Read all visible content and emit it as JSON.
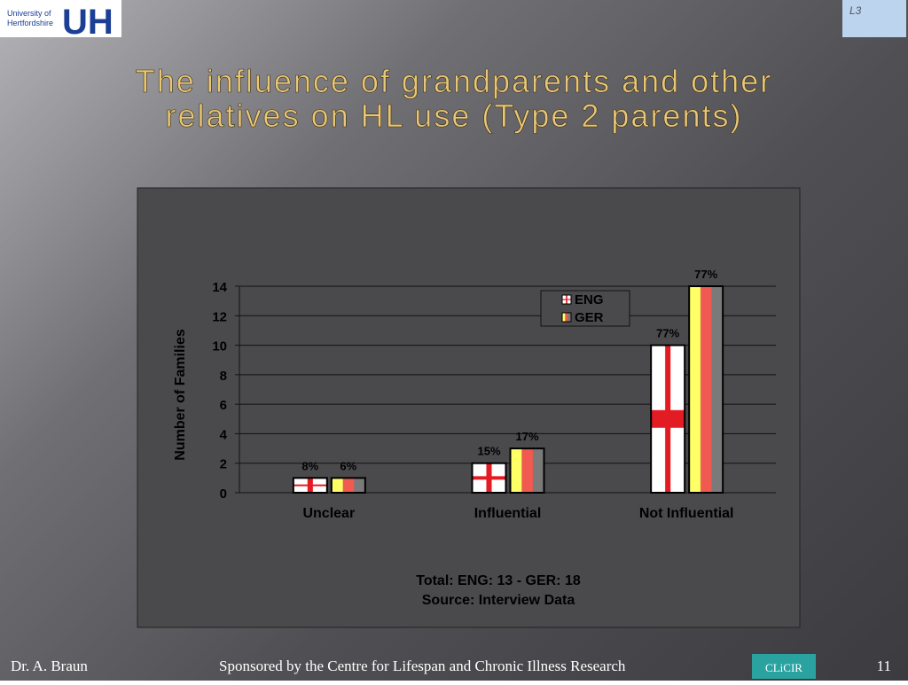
{
  "header": {
    "logo_line1": "University of",
    "logo_line2": "Hertfordshire",
    "logo_mark": "UH",
    "badge": "L3"
  },
  "title_line1": "The influence of grandparents and other",
  "title_line2": "relatives on HL use (Type 2 parents)",
  "chart_data": {
    "type": "bar",
    "categories": [
      "Unclear",
      "Influential",
      "Not Influential"
    ],
    "series": [
      {
        "name": "ENG",
        "color": "#e31b23",
        "values": [
          1,
          2,
          10
        ],
        "percent_labels": [
          "8%",
          "15%",
          "77%"
        ]
      },
      {
        "name": "GER",
        "color": "#ffff66",
        "values": [
          1,
          3,
          14
        ],
        "percent_labels": [
          "6%",
          "17%",
          "77%"
        ]
      }
    ],
    "ylabel": "Number of Families",
    "ylim": [
      0,
      14
    ],
    "yticks": [
      0,
      2,
      4,
      6,
      8,
      10,
      12,
      14
    ],
    "grid": true,
    "legend": "top-right",
    "notes": [
      "Total: ENG: 13 - GER: 18",
      "Source: Interview Data"
    ]
  },
  "footer": {
    "author": "Dr. A. Braun",
    "sponsor": "Sponsored by the Centre for Lifespan and Chronic Illness Research",
    "sponsor_logo": "CLiCIR",
    "page": "11"
  }
}
